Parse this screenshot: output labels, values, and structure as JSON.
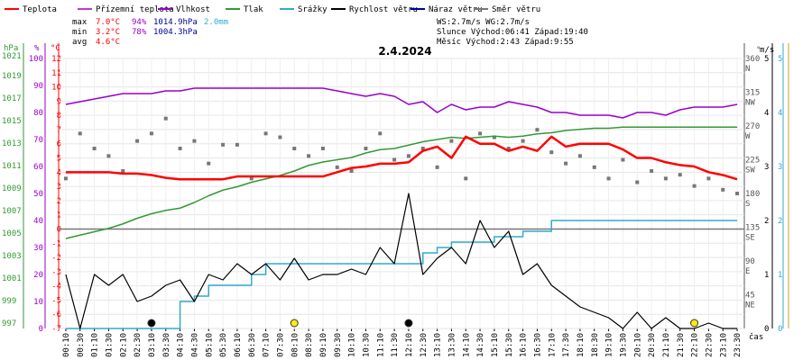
{
  "chart_data": {
    "type": "line",
    "title": "2.4.2024",
    "legend": [
      {
        "label": "Teplota",
        "color": "#ff0000"
      },
      {
        "label": "Přízemní teplota",
        "color": "#cc33cc"
      },
      {
        "label": "Vlhkost",
        "color": "#9900cc"
      },
      {
        "label": "Tlak",
        "color": "#339933"
      },
      {
        "label": "Srážky",
        "color": "#33aacc"
      },
      {
        "label": "Rychlost větru",
        "color": "#000000"
      },
      {
        "label": "Náraz větru",
        "color": "#000099"
      },
      {
        "label": "Směr větru",
        "color": "#777777"
      }
    ],
    "stats": {
      "labels": [
        "max",
        "min",
        "avg"
      ],
      "temperature": [
        "7.0°C",
        "3.2°C",
        "4.6°C"
      ],
      "humidity": [
        "94%",
        "78%",
        ""
      ],
      "pressure": [
        "1014.9hPa",
        "1004.3hPa",
        ""
      ],
      "rain": [
        "2.0mm",
        "",
        ""
      ]
    },
    "info": {
      "line1": "WS:2.7m/s    WG:2.7m/s",
      "line2": "Slunce Východ:06:41  Západ:19:40",
      "line3": "Měsíc  Východ:2:43   Západ:9:55"
    },
    "axes": {
      "pressure": {
        "unit": "hPa",
        "ticks": [
          "1021",
          "1019",
          "1017",
          "1015",
          "1013",
          "1011",
          "1009",
          "1007",
          "1005",
          "1003",
          "1001",
          "999",
          "997"
        ],
        "color": "#339933"
      },
      "humidity": {
        "unit": "%",
        "ticks": [
          "100",
          "90",
          "80",
          "70",
          "60",
          "50",
          "40",
          "30",
          "20",
          "10",
          "0"
        ],
        "color": "#9900cc"
      },
      "temperature": {
        "unit": "°C",
        "range": [
          -7,
          12
        ],
        "ticks": [
          "12",
          "11",
          "10",
          "9",
          "8",
          "7",
          "6",
          "5",
          "4",
          "3",
          "2",
          "1",
          "0",
          "-1",
          "-2",
          "-3",
          "-4",
          "-5",
          "-6",
          "-7"
        ],
        "color": "#ff0000"
      },
      "direction": {
        "unit": "°",
        "labels": [
          "360\nN",
          "315\nNW",
          "270\nW",
          "225\nSW",
          "180\nS",
          "135\nSE",
          "90\nE",
          "45\nNE"
        ],
        "color": "#555555"
      },
      "wind": {
        "unit": "m/s",
        "range": [
          0,
          5
        ],
        "ticks": [
          "5",
          "4",
          "3",
          "2",
          "1",
          "0"
        ],
        "color": "#000000"
      },
      "rain_axis": {
        "ticks": [
          "5",
          "4",
          "3",
          "2",
          "1",
          "0"
        ],
        "color": "#33aacc"
      },
      "x_label": "čas",
      "x_ticks": [
        "00:10",
        "00:30",
        "01:10",
        "01:30",
        "02:10",
        "02:30",
        "03:10",
        "03:30",
        "04:10",
        "04:30",
        "05:10",
        "05:30",
        "06:10",
        "06:30",
        "07:10",
        "07:30",
        "08:10",
        "08:30",
        "09:10",
        "09:30",
        "10:10",
        "10:30",
        "11:10",
        "11:30",
        "12:10",
        "12:30",
        "13:10",
        "13:30",
        "14:10",
        "14:30",
        "15:10",
        "15:30",
        "16:10",
        "16:30",
        "17:10",
        "17:30",
        "18:10",
        "18:30",
        "19:10",
        "19:30",
        "20:10",
        "20:30",
        "21:10",
        "21:30",
        "22:10",
        "22:30",
        "23:10",
        "23:30"
      ]
    },
    "series": {
      "temperature_c": [
        4.0,
        4.0,
        4.0,
        4.0,
        3.9,
        3.9,
        3.8,
        3.6,
        3.5,
        3.5,
        3.5,
        3.5,
        3.7,
        3.7,
        3.7,
        3.7,
        3.7,
        3.7,
        3.7,
        4.0,
        4.3,
        4.4,
        4.6,
        4.6,
        4.7,
        5.5,
        5.8,
        5.0,
        6.5,
        6.0,
        6.0,
        5.5,
        5.8,
        5.5,
        6.5,
        5.8,
        6.0,
        6.0,
        6.0,
        5.6,
        5.0,
        5.0,
        4.7,
        4.5,
        4.4,
        4.0,
        3.8,
        3.5
      ],
      "humidity_pct": [
        83,
        84,
        85,
        86,
        87,
        87,
        87,
        88,
        88,
        89,
        89,
        89,
        89,
        89,
        89,
        89,
        89,
        89,
        89,
        88,
        87,
        86,
        87,
        86,
        83,
        84,
        80,
        83,
        81,
        82,
        82,
        84,
        83,
        82,
        80,
        80,
        79,
        79,
        79,
        78,
        80,
        80,
        79,
        81,
        82,
        82,
        82,
        83
      ],
      "pressure_hpa": [
        1005.0,
        1005.3,
        1005.6,
        1005.9,
        1006.3,
        1006.8,
        1007.2,
        1007.5,
        1007.7,
        1008.2,
        1008.8,
        1009.3,
        1009.6,
        1010.0,
        1010.3,
        1010.6,
        1011.0,
        1011.5,
        1011.8,
        1012.0,
        1012.2,
        1012.6,
        1012.9,
        1013.0,
        1013.3,
        1013.6,
        1013.8,
        1014.0,
        1013.9,
        1014.0,
        1014.1,
        1014.0,
        1014.1,
        1014.3,
        1014.4,
        1014.6,
        1014.7,
        1014.8,
        1014.8,
        1014.9,
        1014.9,
        1014.9,
        1014.9,
        1014.9,
        1014.9,
        1014.9,
        1014.9,
        1014.9
      ],
      "rain_mm": [
        0.0,
        0.0,
        0.0,
        0.0,
        0.0,
        0.0,
        0.0,
        0.0,
        0.5,
        0.6,
        0.8,
        0.8,
        0.8,
        1.0,
        1.2,
        1.2,
        1.2,
        1.2,
        1.2,
        1.2,
        1.2,
        1.2,
        1.2,
        1.2,
        1.2,
        1.4,
        1.5,
        1.6,
        1.6,
        1.6,
        1.7,
        1.7,
        1.8,
        1.8,
        2.0,
        2.0,
        2.0,
        2.0,
        2.0,
        2.0,
        2.0,
        2.0,
        2.0,
        2.0,
        2.0,
        2.0,
        2.0,
        2.0
      ],
      "wind_ms": [
        1.0,
        0.0,
        1.0,
        0.8,
        1.0,
        0.5,
        0.6,
        0.8,
        0.9,
        0.5,
        1.0,
        0.9,
        1.2,
        1.0,
        1.2,
        0.9,
        1.3,
        0.9,
        1.0,
        1.0,
        1.1,
        1.0,
        1.5,
        1.2,
        2.5,
        1.0,
        1.3,
        1.5,
        1.2,
        2.0,
        1.5,
        1.8,
        1.0,
        1.2,
        0.8,
        0.6,
        0.4,
        0.3,
        0.2,
        0.0,
        0.3,
        0.0,
        0.2,
        0.0,
        0.0,
        0.1,
        0.0,
        0.0
      ],
      "wind_dir_deg": [
        200,
        260,
        240,
        230,
        210,
        250,
        260,
        280,
        240,
        250,
        220,
        245,
        245,
        200,
        260,
        255,
        240,
        230,
        240,
        215,
        210,
        240,
        260,
        225,
        230,
        240,
        215,
        250,
        200,
        260,
        255,
        240,
        250,
        265,
        235,
        220,
        230,
        215,
        200,
        225,
        195,
        210,
        200,
        205,
        190,
        200,
        185,
        180
      ]
    },
    "markers": [
      "moonrise",
      "sunrise",
      "moonset",
      "sunset"
    ]
  }
}
